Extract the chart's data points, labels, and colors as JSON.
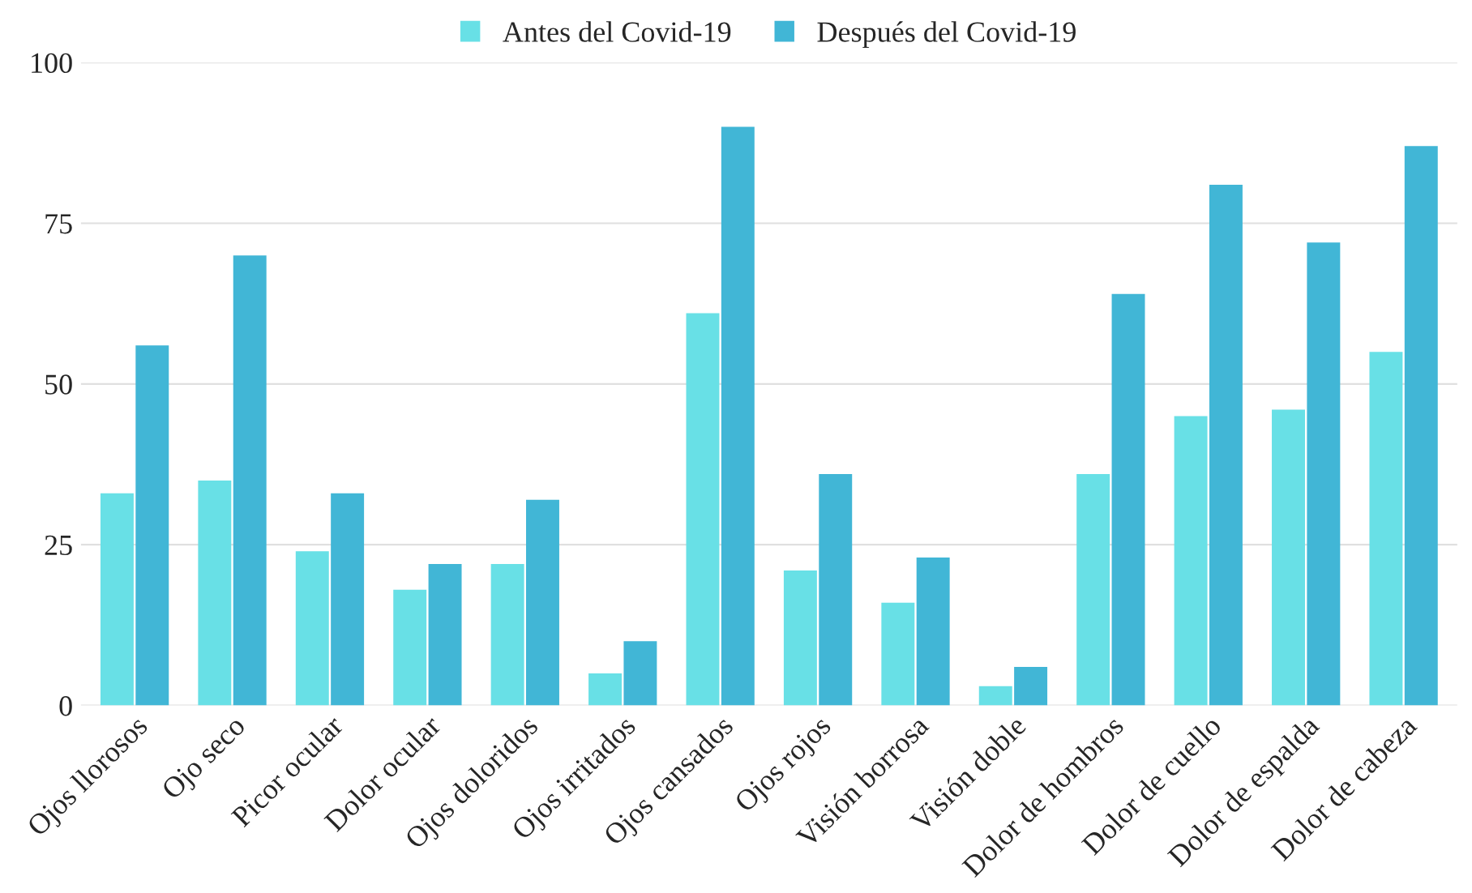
{
  "chart_data": {
    "type": "bar",
    "categories": [
      "Ojos llorosos",
      "Ojo seco",
      "Picor ocular",
      "Dolor ocular",
      "Ojos doloridos",
      "Ojos irritados",
      "Ojos cansados",
      "Ojos rojos",
      "Visión borrosa",
      "Visión doble",
      "Dolor de hombros",
      "Dolor de cuello",
      "Dolor de espalda",
      "Dolor de cabeza"
    ],
    "series": [
      {
        "name": "Antes del Covid-19",
        "color": "#68e0e6",
        "values": [
          33,
          35,
          24,
          18,
          22,
          5,
          61,
          21,
          16,
          3,
          36,
          45,
          46,
          55
        ]
      },
      {
        "name": "Después del Covid-19",
        "color": "#41b6d6",
        "values": [
          56,
          70,
          33,
          22,
          32,
          10,
          90,
          36,
          23,
          6,
          64,
          81,
          72,
          87
        ]
      }
    ],
    "ylim": [
      0,
      100
    ],
    "yticks": [
      0,
      25,
      50,
      75,
      100
    ],
    "grid": "y",
    "legend": "top"
  }
}
